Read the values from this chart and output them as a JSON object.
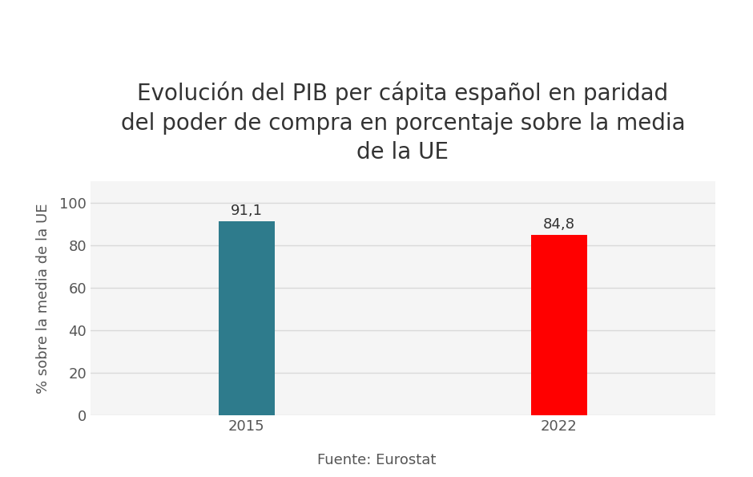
{
  "categories": [
    "2015",
    "2022"
  ],
  "values": [
    91.1,
    84.8
  ],
  "bar_colors": [
    "#2e7b8c",
    "#ff0000"
  ],
  "value_labels": [
    "91,1",
    "84,8"
  ],
  "title": "Evolución del PIB per cápita español en paridad\ndel poder de compra en porcentaje sobre la media\nde la UE",
  "ylabel": "% sobre la media de la UE",
  "source": "Fuente: Eurostat",
  "ylim": [
    0,
    110
  ],
  "yticks": [
    0,
    20,
    40,
    60,
    80,
    100
  ],
  "bar_width": 0.18,
  "title_fontsize": 20,
  "label_fontsize": 13,
  "tick_fontsize": 13,
  "source_fontsize": 13,
  "value_label_fontsize": 13,
  "background_color": "#ffffff",
  "plot_bg_color": "#f5f5f5",
  "grid_color": "#d9d9d9",
  "bar_positions": [
    1,
    2
  ],
  "xlim": [
    0.5,
    2.5
  ]
}
